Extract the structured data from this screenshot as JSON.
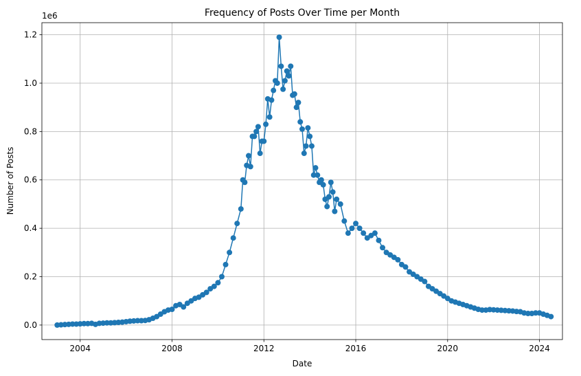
{
  "chart_data": {
    "type": "line",
    "title": "Frequency of Posts Over Time per Month",
    "xlabel": "Date",
    "ylabel": "Number of Posts",
    "y_offset_text": "1e6",
    "x_axis_type": "date",
    "xlim": [
      "2002-05-01",
      "2025-01-01"
    ],
    "ylim": [
      -0.06,
      1.25
    ],
    "x_ticks": [
      "2004",
      "2008",
      "2012",
      "2016",
      "2020",
      "2024"
    ],
    "y_ticks": [
      "0.0",
      "0.2",
      "0.4",
      "0.6",
      "0.8",
      "1.0",
      "1.2"
    ],
    "grid": true,
    "markers": "circle",
    "color": "#1f77b4",
    "series": [
      {
        "x": [
          "2003-01",
          "2003-03",
          "2003-05",
          "2003-07",
          "2003-09",
          "2003-11",
          "2004-01",
          "2004-03",
          "2004-05",
          "2004-07",
          "2004-09",
          "2004-11",
          "2005-01",
          "2005-03",
          "2005-05",
          "2005-07",
          "2005-09",
          "2005-11",
          "2006-01",
          "2006-03",
          "2006-05",
          "2006-07",
          "2006-09",
          "2006-11",
          "2007-01",
          "2007-03",
          "2007-05",
          "2007-07",
          "2007-09",
          "2007-11",
          "2008-01",
          "2008-03",
          "2008-05",
          "2008-07",
          "2008-09",
          "2008-11",
          "2009-01",
          "2009-03",
          "2009-05",
          "2009-07",
          "2009-09",
          "2009-11",
          "2010-01",
          "2010-03",
          "2010-05",
          "2010-07",
          "2010-09",
          "2010-11",
          "2011-01",
          "2011-02",
          "2011-03",
          "2011-04",
          "2011-05",
          "2011-06",
          "2011-07",
          "2011-08",
          "2011-09",
          "2011-10",
          "2011-11",
          "2011-12",
          "2012-01",
          "2012-02",
          "2012-03",
          "2012-04",
          "2012-05",
          "2012-06",
          "2012-07",
          "2012-08",
          "2012-09",
          "2012-10",
          "2012-11",
          "2012-12",
          "2013-01",
          "2013-02",
          "2013-03",
          "2013-04",
          "2013-05",
          "2013-06",
          "2013-07",
          "2013-08",
          "2013-09",
          "2013-10",
          "2013-11",
          "2013-12",
          "2014-01",
          "2014-02",
          "2014-03",
          "2014-04",
          "2014-05",
          "2014-06",
          "2014-07",
          "2014-08",
          "2014-09",
          "2014-10",
          "2014-11",
          "2014-12",
          "2015-01",
          "2015-02",
          "2015-03",
          "2015-05",
          "2015-07",
          "2015-09",
          "2015-11",
          "2016-01",
          "2016-03",
          "2016-05",
          "2016-07",
          "2016-09",
          "2016-11",
          "2017-01",
          "2017-03",
          "2017-05",
          "2017-07",
          "2017-09",
          "2017-11",
          "2018-01",
          "2018-03",
          "2018-05",
          "2018-07",
          "2018-09",
          "2018-11",
          "2019-01",
          "2019-03",
          "2019-05",
          "2019-07",
          "2019-09",
          "2019-11",
          "2020-01",
          "2020-03",
          "2020-05",
          "2020-07",
          "2020-09",
          "2020-11",
          "2021-01",
          "2021-03",
          "2021-05",
          "2021-07",
          "2021-09",
          "2021-11",
          "2022-01",
          "2022-03",
          "2022-05",
          "2022-07",
          "2022-09",
          "2022-11",
          "2023-01",
          "2023-03",
          "2023-05",
          "2023-07",
          "2023-09",
          "2023-11",
          "2024-01",
          "2024-03",
          "2024-05",
          "2024-07"
        ],
        "y": [
          0.0,
          0.001,
          0.002,
          0.003,
          0.004,
          0.004,
          0.005,
          0.006,
          0.006,
          0.007,
          0.003,
          0.007,
          0.008,
          0.009,
          0.009,
          0.01,
          0.011,
          0.012,
          0.014,
          0.016,
          0.017,
          0.018,
          0.018,
          0.019,
          0.022,
          0.028,
          0.035,
          0.045,
          0.055,
          0.062,
          0.065,
          0.08,
          0.085,
          0.075,
          0.09,
          0.1,
          0.11,
          0.115,
          0.125,
          0.135,
          0.15,
          0.16,
          0.175,
          0.2,
          0.25,
          0.3,
          0.36,
          0.42,
          0.48,
          0.6,
          0.59,
          0.66,
          0.7,
          0.655,
          0.78,
          0.78,
          0.8,
          0.82,
          0.71,
          0.76,
          0.76,
          0.83,
          0.935,
          0.86,
          0.93,
          0.97,
          1.01,
          1.0,
          1.19,
          1.07,
          0.975,
          1.01,
          1.05,
          1.03,
          1.07,
          0.95,
          0.955,
          0.9,
          0.92,
          0.84,
          0.81,
          0.71,
          0.74,
          0.815,
          0.78,
          0.74,
          0.62,
          0.65,
          0.62,
          0.59,
          0.6,
          0.58,
          0.52,
          0.49,
          0.53,
          0.59,
          0.55,
          0.47,
          0.52,
          0.5,
          0.43,
          0.38,
          0.4,
          0.42,
          0.4,
          0.38,
          0.36,
          0.37,
          0.38,
          0.35,
          0.32,
          0.3,
          0.29,
          0.28,
          0.27,
          0.25,
          0.24,
          0.22,
          0.21,
          0.2,
          0.19,
          0.18,
          0.16,
          0.15,
          0.14,
          0.13,
          0.12,
          0.11,
          0.1,
          0.095,
          0.09,
          0.085,
          0.08,
          0.075,
          0.07,
          0.065,
          0.062,
          0.062,
          0.064,
          0.063,
          0.062,
          0.061,
          0.06,
          0.059,
          0.058,
          0.056,
          0.055,
          0.05,
          0.048,
          0.048,
          0.05,
          0.05,
          0.045,
          0.04,
          0.035
        ]
      }
    ]
  }
}
